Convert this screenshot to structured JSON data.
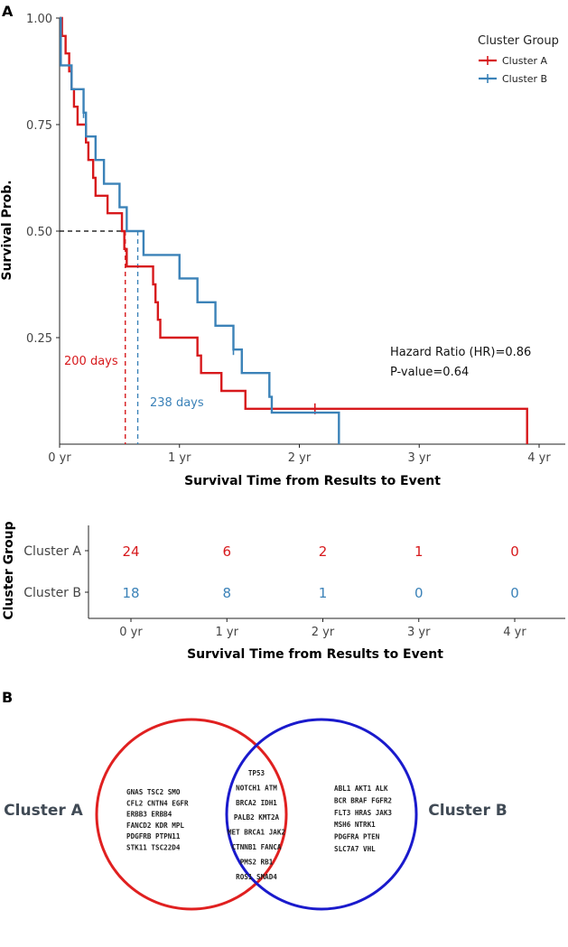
{
  "panel_a_label": "A",
  "panel_b_label": "B",
  "colors": {
    "cluster_a": "#d7191c",
    "cluster_b": "#3b82b8",
    "venn_a": "#e02020",
    "venn_b": "#1a1acc",
    "axis": "#222222",
    "label_gray": "#444444"
  },
  "chart_data": [
    {
      "type": "line",
      "subtype": "kaplan-meier",
      "xlabel": "Survival Time from Results to Event",
      "ylabel": "Survival Prob.",
      "xlim": [
        0,
        4.1
      ],
      "ylim": [
        0,
        1.0
      ],
      "x_ticks": [
        {
          "value": 0,
          "label": "0 yr"
        },
        {
          "value": 1,
          "label": "1 yr"
        },
        {
          "value": 2,
          "label": "2 yr"
        },
        {
          "value": 3,
          "label": "3 yr"
        },
        {
          "value": 4,
          "label": "4 yr"
        }
      ],
      "y_ticks": [
        {
          "value": 0.25,
          "label": "0.25"
        },
        {
          "value": 0.5,
          "label": "0.50"
        },
        {
          "value": 0.75,
          "label": "0.75"
        },
        {
          "value": 1.0,
          "label": "1.00"
        }
      ],
      "legend": {
        "title": "Cluster Group",
        "placement": "top-right"
      },
      "series": [
        {
          "name": "Cluster A",
          "color": "#d7191c",
          "steps": [
            [
              0,
              1.0
            ],
            [
              0.02,
              0.958
            ],
            [
              0.05,
              0.917
            ],
            [
              0.08,
              0.875
            ],
            [
              0.1,
              0.833
            ],
            [
              0.12,
              0.792
            ],
            [
              0.15,
              0.75
            ],
            [
              0.22,
              0.708
            ],
            [
              0.24,
              0.667
            ],
            [
              0.28,
              0.625
            ],
            [
              0.3,
              0.583
            ],
            [
              0.4,
              0.542
            ],
            [
              0.52,
              0.5
            ],
            [
              0.54,
              0.458
            ],
            [
              0.56,
              0.417
            ],
            [
              0.78,
              0.375
            ],
            [
              0.8,
              0.333
            ],
            [
              0.82,
              0.292
            ],
            [
              0.84,
              0.25
            ],
            [
              1.15,
              0.208
            ],
            [
              1.18,
              0.167
            ],
            [
              1.35,
              0.125
            ],
            [
              1.55,
              0.083
            ],
            [
              3.9,
              0.083
            ],
            [
              3.9,
              0.0
            ]
          ],
          "censored": [
            [
              2.13,
              0.083
            ]
          ],
          "median_days": "200 days",
          "median_x": 0.548
        },
        {
          "name": "Cluster B",
          "color": "#3b82b8",
          "steps": [
            [
              0,
              1.0
            ],
            [
              0.01,
              0.889
            ],
            [
              0.09,
              0.889
            ],
            [
              0.1,
              0.833
            ],
            [
              0.2,
              0.778
            ],
            [
              0.22,
              0.722
            ],
            [
              0.3,
              0.667
            ],
            [
              0.37,
              0.611
            ],
            [
              0.5,
              0.556
            ],
            [
              0.56,
              0.5
            ],
            [
              0.7,
              0.444
            ],
            [
              1.0,
              0.389
            ],
            [
              1.15,
              0.333
            ],
            [
              1.3,
              0.278
            ],
            [
              1.45,
              0.222
            ],
            [
              1.52,
              0.167
            ],
            [
              1.75,
              0.111
            ],
            [
              1.77,
              0.074
            ],
            [
              2.33,
              0.074
            ],
            [
              2.33,
              0.0
            ]
          ],
          "censored": [
            [
              0.2,
              0.778
            ],
            [
              1.45,
              0.222
            ]
          ],
          "median_days": "238 days",
          "median_x": 0.652
        }
      ],
      "annotations": {
        "hazard_ratio": "Hazard Ratio (HR)=0.86",
        "p_value": "P-value=0.64"
      }
    },
    {
      "type": "table",
      "subtype": "risk-table",
      "ylabel": "Cluster Group",
      "xlabel": "Survival Time from Results to Event",
      "x_ticks": [
        {
          "value": 0,
          "label": "0 yr"
        },
        {
          "value": 1,
          "label": "1 yr"
        },
        {
          "value": 2,
          "label": "2 yr"
        },
        {
          "value": 3,
          "label": "3 yr"
        },
        {
          "value": 4,
          "label": "4 yr"
        }
      ],
      "rows": [
        {
          "name": "Cluster A",
          "color": "#d7191c",
          "values": [
            "24",
            "6",
            "2",
            "1",
            "0"
          ]
        },
        {
          "name": "Cluster B",
          "color": "#3b82b8",
          "values": [
            "18",
            "8",
            "1",
            "0",
            "0"
          ]
        }
      ]
    }
  ],
  "venn": {
    "left_label": "Cluster A",
    "right_label": "Cluster B",
    "left_only": [
      "GNAS  TSC2  SMO",
      "CFL2  CNTN4  EGFR",
      "ERBB3  ERBB4",
      "FANCD2  KDR  MPL",
      "PDGFRB  PTPN11",
      "STK11  TSC22D4"
    ],
    "shared": [
      "TP53",
      "NOTCH1  ATM",
      "BRCA2  IDH1",
      "PALB2  KMT2A",
      "MET  BRCA1  JAK2",
      "CTNNB1  FANCA",
      "PMS2  RB1",
      "ROS1  SMAD4"
    ],
    "right_only": [
      "ABL1  AKT1  ALK",
      "BCR  BRAF  FGFR2",
      "FLT3  HRAS  JAK3",
      "MSH6  NTRK1",
      "PDGFRA  PTEN",
      "SLC7A7  VHL"
    ]
  }
}
